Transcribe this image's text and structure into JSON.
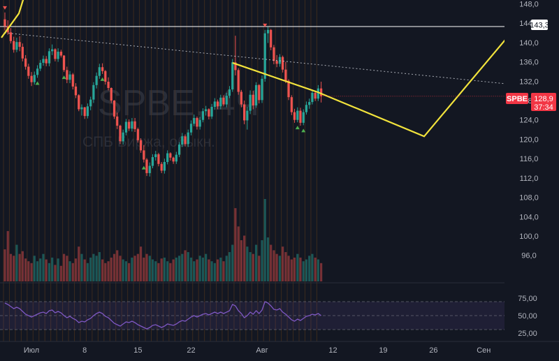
{
  "chart_data": {
    "type": "candlestick",
    "symbol": "SPBE",
    "watermark": {
      "ticker": "SPBE, 4Ч",
      "name": "СПБ Биржа, обыкн."
    },
    "colors": {
      "background": "#131722",
      "up": "#26a69a",
      "down": "#ef5350",
      "annotation": "#f2e33c",
      "rsi": "#7e57c2",
      "level_line": "#ffffff",
      "badge": "#f23645"
    },
    "price_axis": {
      "range": [
        93.5,
        148.5
      ],
      "ticks": [
        "148,0",
        "144,0",
        "140,0",
        "136,0",
        "132,0",
        "128,0",
        "124,0",
        "120,0",
        "116,0",
        "112,0",
        "108,0",
        "104,0",
        "100,0",
        "96,0"
      ]
    },
    "time_axis": {
      "labels": [
        "Июл",
        "8",
        "15",
        "22",
        "Авг",
        "12",
        "19",
        "26",
        "Сен"
      ]
    },
    "candles": [
      [
        144.8,
        146.2,
        142.5,
        143.4
      ],
      [
        143.4,
        144.6,
        141.6,
        142.1
      ],
      [
        142.1,
        143.0,
        139.8,
        140.3
      ],
      [
        140.3,
        141.2,
        137.9,
        138.5
      ],
      [
        138.5,
        141.0,
        138.0,
        140.1
      ],
      [
        140.1,
        141.3,
        138.2,
        139.1
      ],
      [
        139.1,
        139.8,
        136.1,
        136.7
      ],
      [
        136.7,
        137.4,
        134.4,
        135.0
      ],
      [
        135.0,
        135.6,
        132.5,
        133.1
      ],
      [
        133.1,
        133.9,
        131.0,
        131.8
      ],
      [
        131.8,
        134.0,
        131.3,
        133.3
      ],
      [
        133.3,
        135.3,
        132.7,
        134.6
      ],
      [
        134.6,
        136.4,
        134.1,
        135.8
      ],
      [
        135.8,
        137.3,
        135.2,
        136.6
      ],
      [
        136.6,
        137.2,
        135.1,
        135.7
      ],
      [
        135.7,
        138.8,
        135.1,
        138.2
      ],
      [
        138.2,
        139.6,
        137.4,
        138.6
      ],
      [
        138.6,
        138.8,
        136.1,
        136.6
      ],
      [
        136.6,
        138.8,
        136.0,
        138.1
      ],
      [
        138.1,
        138.5,
        136.9,
        137.3
      ],
      [
        137.3,
        137.4,
        133.9,
        134.3
      ],
      [
        134.3,
        135.0,
        131.6,
        132.3
      ],
      [
        132.3,
        134.1,
        131.6,
        133.4
      ],
      [
        133.4,
        133.7,
        130.3,
        130.9
      ],
      [
        130.9,
        131.6,
        128.5,
        129.1
      ],
      [
        129.1,
        129.3,
        125.8,
        126.2
      ],
      [
        126.2,
        127.2,
        124.9,
        126.6
      ],
      [
        126.6,
        126.7,
        124.2,
        124.8
      ],
      [
        124.8,
        127.4,
        124.3,
        126.8
      ],
      [
        126.8,
        128.8,
        126.0,
        128.2
      ],
      [
        128.2,
        131.8,
        127.5,
        131.2
      ],
      [
        131.2,
        133.8,
        130.5,
        133.1
      ],
      [
        133.1,
        135.6,
        132.5,
        134.9
      ],
      [
        134.9,
        135.7,
        133.5,
        134.1
      ],
      [
        134.1,
        134.3,
        131.3,
        131.9
      ],
      [
        131.9,
        132.8,
        130.1,
        130.6
      ],
      [
        130.6,
        130.7,
        127.5,
        128.0
      ],
      [
        128.0,
        128.1,
        124.2,
        124.7
      ],
      [
        124.7,
        125.5,
        122.1,
        122.8
      ],
      [
        122.8,
        123.0,
        119.0,
        119.6
      ],
      [
        119.6,
        122.0,
        118.9,
        121.4
      ],
      [
        121.4,
        124.2,
        120.8,
        123.6
      ],
      [
        123.6,
        124.1,
        121.7,
        122.2
      ],
      [
        122.2,
        124.4,
        121.6,
        123.7
      ],
      [
        123.7,
        124.4,
        121.5,
        122.1
      ],
      [
        122.1,
        122.4,
        119.3,
        119.8
      ],
      [
        119.8,
        120.2,
        117.2,
        117.7
      ],
      [
        117.7,
        118.8,
        115.2,
        115.8
      ],
      [
        115.8,
        116.1,
        112.4,
        113.0
      ],
      [
        113.0,
        115.2,
        112.3,
        114.5
      ],
      [
        114.5,
        116.9,
        114.0,
        116.3
      ],
      [
        116.3,
        117.6,
        115.6,
        116.9
      ],
      [
        116.9,
        117.2,
        114.4,
        114.9
      ],
      [
        114.9,
        115.3,
        113.0,
        113.5
      ],
      [
        113.5,
        116.0,
        112.9,
        115.3
      ],
      [
        115.3,
        117.7,
        114.8,
        117.1
      ],
      [
        117.1,
        117.3,
        115.6,
        116.2
      ],
      [
        116.2,
        116.4,
        114.9,
        115.4
      ],
      [
        115.4,
        117.4,
        114.9,
        116.8
      ],
      [
        116.8,
        119.4,
        116.3,
        118.9
      ],
      [
        118.9,
        121.3,
        118.4,
        120.6
      ],
      [
        120.6,
        121.0,
        118.5,
        119.0
      ],
      [
        119.0,
        122.0,
        118.4,
        121.4
      ],
      [
        121.4,
        123.9,
        120.8,
        123.2
      ],
      [
        123.2,
        125.1,
        122.7,
        124.4
      ],
      [
        124.4,
        124.7,
        122.0,
        122.6
      ],
      [
        122.6,
        124.6,
        122.0,
        124.0
      ],
      [
        124.0,
        126.4,
        123.5,
        125.8
      ],
      [
        125.8,
        126.9,
        124.9,
        126.2
      ],
      [
        126.2,
        126.4,
        124.1,
        124.7
      ],
      [
        124.7,
        127.3,
        124.2,
        126.7
      ],
      [
        126.7,
        128.5,
        126.1,
        127.8
      ],
      [
        127.8,
        128.2,
        126.2,
        126.8
      ],
      [
        126.8,
        129.2,
        126.2,
        128.6
      ],
      [
        128.6,
        129.1,
        126.8,
        127.2
      ],
      [
        127.2,
        129.6,
        126.6,
        129.0
      ],
      [
        129.0,
        131.0,
        128.5,
        130.3
      ],
      [
        130.3,
        136.6,
        129.8,
        135.9
      ],
      [
        135.9,
        141.4,
        133.2,
        134.3
      ],
      [
        134.3,
        134.7,
        129.2,
        129.8
      ],
      [
        129.8,
        130.2,
        126.6,
        127.2
      ],
      [
        127.2,
        128.0,
        123.1,
        123.9
      ],
      [
        123.9,
        126.7,
        122.0,
        125.9
      ],
      [
        125.9,
        130.1,
        125.2,
        129.2
      ],
      [
        129.2,
        130.0,
        126.2,
        127.0
      ],
      [
        127.0,
        131.8,
        126.5,
        131.2
      ],
      [
        131.2,
        131.4,
        127.4,
        128.1
      ],
      [
        128.1,
        133.2,
        127.5,
        132.5
      ],
      [
        132.5,
        142.6,
        131.9,
        141.9
      ],
      [
        141.9,
        143.2,
        139.9,
        142.6
      ],
      [
        142.6,
        142.8,
        138.4,
        139.0
      ],
      [
        139.0,
        139.5,
        135.5,
        136.2
      ],
      [
        136.2,
        137.4,
        134.9,
        135.6
      ],
      [
        135.6,
        137.6,
        135.0,
        137.0
      ],
      [
        137.0,
        137.3,
        133.8,
        134.4
      ],
      [
        134.4,
        136.0,
        131.6,
        132.1
      ],
      [
        132.1,
        132.4,
        128.1,
        128.7
      ],
      [
        128.7,
        129.1,
        125.0,
        125.6
      ],
      [
        125.6,
        126.3,
        123.4,
        124.0
      ],
      [
        124.0,
        126.6,
        123.5,
        125.9
      ],
      [
        125.9,
        126.5,
        122.8,
        123.4
      ],
      [
        123.4,
        126.2,
        122.9,
        125.6
      ],
      [
        125.6,
        127.8,
        125.1,
        127.1
      ],
      [
        127.1,
        128.4,
        126.3,
        127.7
      ],
      [
        127.7,
        130.2,
        127.2,
        129.6
      ],
      [
        129.6,
        130.1,
        127.9,
        128.4
      ],
      [
        128.4,
        131.2,
        127.9,
        130.5
      ],
      [
        130.5,
        131.9,
        127.6,
        128.9
      ]
    ],
    "volumes": [
      35,
      55,
      30,
      28,
      40,
      30,
      33,
      25,
      22,
      20,
      28,
      22,
      25,
      30,
      24,
      20,
      26,
      18,
      25,
      17,
      30,
      28,
      22,
      20,
      25,
      38,
      30,
      24,
      20,
      26,
      30,
      28,
      32,
      24,
      20,
      22,
      26,
      30,
      34,
      28,
      24,
      22,
      20,
      26,
      28,
      30,
      38,
      26,
      30,
      28,
      24,
      22,
      20,
      25,
      26,
      22,
      20,
      24,
      26,
      28,
      30,
      34,
      32,
      26,
      22,
      24,
      28,
      26,
      30,
      24,
      22,
      20,
      24,
      26,
      22,
      28,
      32,
      40,
      80,
      60,
      45,
      50,
      38,
      32,
      30,
      40,
      28,
      45,
      90,
      48,
      40,
      34,
      30,
      28,
      38,
      32,
      28,
      24,
      26,
      30,
      26,
      22,
      24,
      28,
      30,
      26,
      24,
      20
    ],
    "rsi": {
      "range": [
        25,
        75
      ],
      "ticks": [
        "75,00",
        "50,00",
        "25,00"
      ],
      "values": [
        68,
        66,
        63,
        60,
        62,
        60,
        56,
        52,
        50,
        48,
        50,
        52,
        54,
        55,
        53,
        57,
        58,
        54,
        56,
        54,
        50,
        47,
        49,
        46,
        44,
        40,
        42,
        41,
        44,
        46,
        50,
        53,
        55,
        53,
        49,
        47,
        43,
        39,
        37,
        35,
        38,
        41,
        40,
        42,
        40,
        37,
        35,
        33,
        31,
        33,
        36,
        37,
        35,
        33,
        35,
        38,
        37,
        36,
        38,
        41,
        43,
        42,
        45,
        48,
        50,
        48,
        50,
        52,
        53,
        51,
        53,
        55,
        53,
        55,
        53,
        55,
        57,
        66,
        64,
        57,
        53,
        47,
        50,
        55,
        52,
        57,
        53,
        58,
        70,
        68,
        64,
        59,
        58,
        60,
        55,
        52,
        48,
        44,
        42,
        45,
        43,
        46,
        49,
        50,
        52,
        51,
        53,
        50
      ]
    },
    "price_badge": {
      "symbol": "SPBE",
      "price": "128,9",
      "countdown": "37:34"
    },
    "level_label": "143,3"
  }
}
